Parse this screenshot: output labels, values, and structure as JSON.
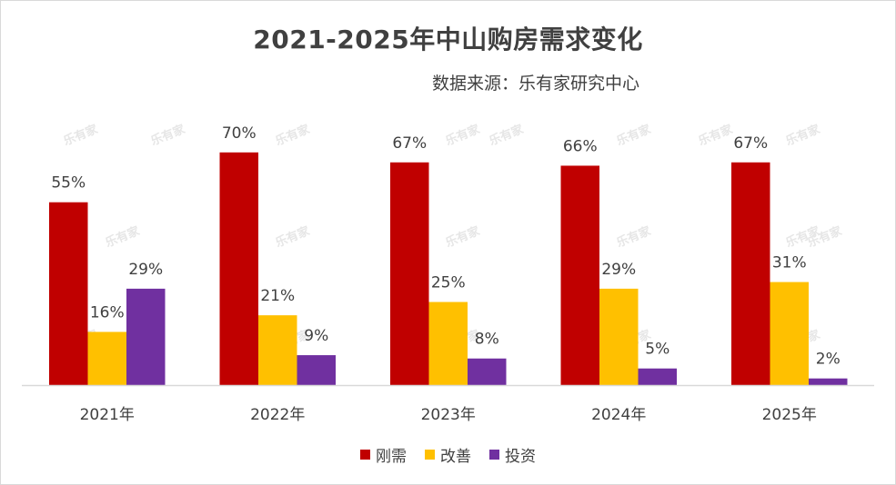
{
  "chart_data": {
    "type": "bar",
    "title": "2021-2025年中山购房需求变化",
    "subtitle": "数据来源：乐有家研究中心",
    "categories": [
      "2021年",
      "2022年",
      "2023年",
      "2024年",
      "2025年"
    ],
    "series": [
      {
        "name": "刚需",
        "color": "#c00000",
        "values": [
          55,
          70,
          67,
          66,
          67
        ],
        "labels": [
          "55%",
          "70%",
          "67%",
          "66%",
          "67%"
        ]
      },
      {
        "name": "改善",
        "color": "#ffc000",
        "values": [
          16,
          21,
          25,
          29,
          31
        ],
        "labels": [
          "16%",
          "21%",
          "25%",
          "29%",
          "31%"
        ]
      },
      {
        "name": "投资",
        "color": "#7030a0",
        "values": [
          29,
          9,
          8,
          5,
          2
        ],
        "labels": [
          "29%",
          "9%",
          "8%",
          "5%",
          "2%"
        ]
      }
    ],
    "ylim": [
      0,
      75
    ],
    "grid": false,
    "legend": "bottom",
    "watermark": "乐有家"
  }
}
